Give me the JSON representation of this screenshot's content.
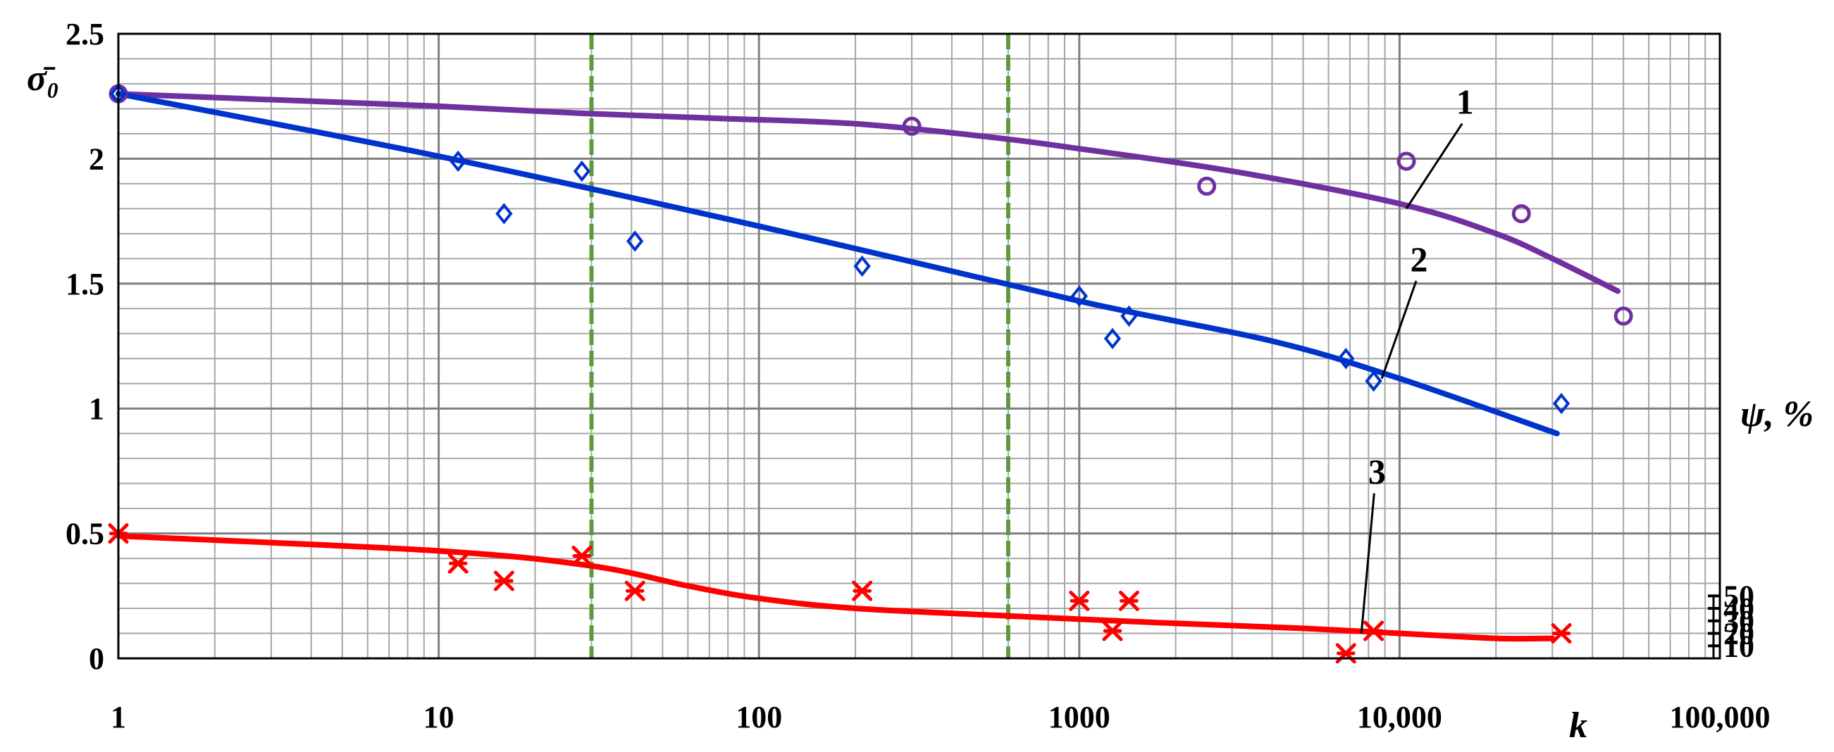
{
  "chart_data": {
    "type": "scatter",
    "title": "",
    "x_axis": {
      "label": "k",
      "scale": "log",
      "range": [
        1,
        100000
      ],
      "tick_values": [
        1,
        10,
        100,
        1000,
        10000,
        100000
      ],
      "tick_labels": [
        "1",
        "10",
        "100",
        "1000",
        "10,000",
        "100,000"
      ]
    },
    "y_axis_left": {
      "label": "σ̄₀",
      "range": [
        0,
        2.5
      ],
      "tick_values": [
        0,
        0.5,
        1,
        1.5,
        2,
        2.5
      ],
      "tick_labels": [
        "0",
        "0.5",
        "1",
        "1.5",
        "2",
        "2.5"
      ]
    },
    "y_axis_right": {
      "label": "ψ, %",
      "range": [
        0,
        50
      ],
      "tick_values": [
        10,
        20,
        30,
        40,
        50
      ],
      "tick_labels": [
        "10",
        "20",
        "30",
        "40",
        "50"
      ]
    },
    "grid": true,
    "vertical_markers": [
      {
        "x": 30,
        "color": "#5e9a3b",
        "style": "dashed"
      },
      {
        "x": 600,
        "color": "#5e9a3b",
        "style": "dashed"
      }
    ],
    "series": [
      {
        "curve_label": "1",
        "color": "#7030a0",
        "marker": "circle",
        "axis": "left",
        "points": [
          [
            1,
            2.26
          ],
          [
            300,
            2.13
          ],
          [
            2500,
            1.89
          ],
          [
            10500,
            1.99
          ],
          [
            24000,
            1.78
          ],
          [
            50000,
            1.37
          ]
        ],
        "fit": [
          [
            1,
            2.26
          ],
          [
            2.5,
            2.24
          ],
          [
            10,
            2.21
          ],
          [
            30,
            2.18
          ],
          [
            80,
            2.16
          ],
          [
            200,
            2.14
          ],
          [
            500,
            2.09
          ],
          [
            1000,
            2.04
          ],
          [
            3000,
            1.95
          ],
          [
            10000,
            1.82
          ],
          [
            20000,
            1.7
          ],
          [
            30000,
            1.6
          ],
          [
            48000,
            1.47
          ]
        ],
        "label_position": {
          "x": 16000,
          "y": 2.18
        },
        "leader_end": {
          "x": 10500,
          "y": 1.8
        }
      },
      {
        "curve_label": "2",
        "color": "#0033cc",
        "marker": "diamond",
        "axis": "left",
        "points": [
          [
            1,
            2.26
          ],
          [
            11.5,
            1.99
          ],
          [
            16,
            1.78
          ],
          [
            28,
            1.95
          ],
          [
            41,
            1.67
          ],
          [
            210,
            1.57
          ],
          [
            1000,
            1.45
          ],
          [
            1270,
            1.28
          ],
          [
            1430,
            1.37
          ],
          [
            6800,
            1.2
          ],
          [
            8300,
            1.11
          ],
          [
            32000,
            1.02
          ]
        ],
        "fit": [
          [
            1,
            2.26
          ],
          [
            10,
            2.01
          ],
          [
            100,
            1.73
          ],
          [
            1000,
            1.43
          ],
          [
            4000,
            1.27
          ],
          [
            10000,
            1.12
          ],
          [
            31000,
            0.9
          ]
        ],
        "label_position": {
          "x": 11500,
          "y": 1.55
        },
        "leader_end": {
          "x": 8800,
          "y": 1.12
        }
      },
      {
        "curve_label": "3",
        "color": "#ff0000",
        "marker": "asterisk",
        "axis": "left",
        "points": [
          [
            1,
            0.5
          ],
          [
            11.5,
            0.38
          ],
          [
            16,
            0.31
          ],
          [
            28,
            0.41
          ],
          [
            41,
            0.27
          ],
          [
            210,
            0.27
          ],
          [
            1000,
            0.23
          ],
          [
            1270,
            0.11
          ],
          [
            1430,
            0.23
          ],
          [
            6800,
            0.02
          ],
          [
            8300,
            0.11
          ],
          [
            32000,
            0.1
          ]
        ],
        "fit": [
          [
            1,
            0.49
          ],
          [
            10,
            0.43
          ],
          [
            30,
            0.37
          ],
          [
            60,
            0.29
          ],
          [
            100,
            0.24
          ],
          [
            200,
            0.2
          ],
          [
            600,
            0.17
          ],
          [
            2000,
            0.14
          ],
          [
            5000,
            0.12
          ],
          [
            10000,
            0.1
          ],
          [
            20000,
            0.08
          ],
          [
            30000,
            0.08
          ]
        ],
        "label_position": {
          "x": 8500,
          "y": 0.7
        },
        "leader_end": {
          "x": 7600,
          "y": 0.1
        }
      }
    ]
  }
}
